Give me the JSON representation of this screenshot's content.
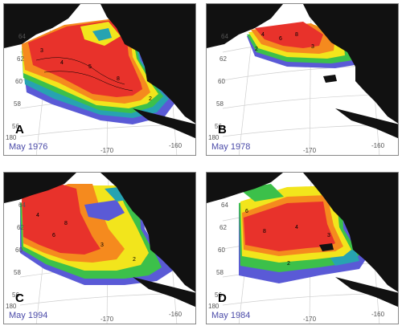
{
  "palette": {
    "land": "#111111",
    "outer": "#5a5ad6",
    "teal": "#27a3b1",
    "green": "#3cc04a",
    "yellow": "#f2e51c",
    "orange": "#f58a1e",
    "red": "#e8322b",
    "date_text": "#4a4aa8"
  },
  "panels": [
    {
      "id": "a",
      "letter": "A",
      "date": "May 1976",
      "lat_ticks": [
        "64",
        "62",
        "60",
        "58",
        "56"
      ],
      "lon_ticks": [
        "-170",
        "-160",
        "180"
      ],
      "contours": [
        "3",
        "4",
        "5",
        "8",
        "2"
      ]
    },
    {
      "id": "b",
      "letter": "B",
      "date": "May 1978",
      "lat_ticks": [
        "64",
        "62",
        "60",
        "58",
        "56"
      ],
      "lon_ticks": [
        "-170",
        "-160",
        "180"
      ],
      "contours": [
        "4",
        "6",
        "2",
        "8",
        "3"
      ]
    },
    {
      "id": "c",
      "letter": "C",
      "date": "May 1994",
      "lat_ticks": [
        "64",
        "62",
        "60",
        "58",
        "56"
      ],
      "lon_ticks": [
        "-170",
        "-160",
        "180"
      ],
      "contours": [
        "4",
        "6",
        "8",
        "3",
        "2"
      ]
    },
    {
      "id": "d",
      "letter": "D",
      "date": "May 1984",
      "lat_ticks": [
        "64",
        "62",
        "60",
        "58",
        "56"
      ],
      "lon_ticks": [
        "-170",
        "-160",
        "180"
      ],
      "contours": [
        "6",
        "8",
        "4",
        "3",
        "2"
      ]
    }
  ]
}
